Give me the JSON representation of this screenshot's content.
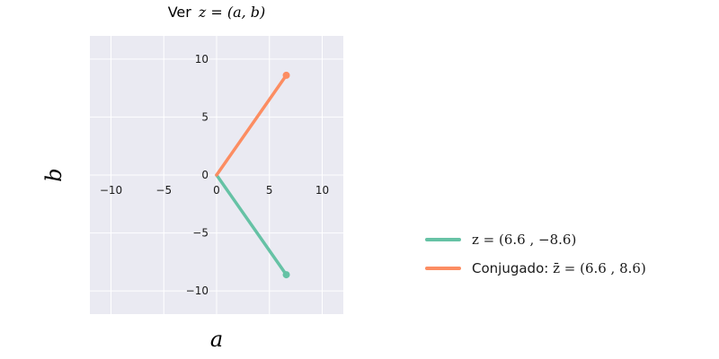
{
  "chart_data": {
    "type": "line",
    "title_prefix": "Ver",
    "title_math": "z = (a, b)",
    "xlabel": "a",
    "ylabel": "b",
    "xlim": [
      -12,
      12
    ],
    "ylim": [
      -12,
      12
    ],
    "xticks": [
      -10,
      -5,
      0,
      5,
      10
    ],
    "yticks": [
      -10,
      -5,
      0,
      5,
      10
    ],
    "x_tick_labels": [
      "−10",
      "−5",
      "0",
      "5",
      "10"
    ],
    "y_tick_labels": [
      "−10",
      "−5",
      "0",
      "5",
      "10"
    ],
    "grid": true,
    "legend_position": "right",
    "series": [
      {
        "id": "z",
        "color": "#66c2a5",
        "legend_prefix": "",
        "legend_math": "z = (6.6 , −8.6)",
        "points": [
          [
            0,
            0
          ],
          [
            6.6,
            -8.6
          ]
        ]
      },
      {
        "id": "conj",
        "color": "#fc8d62",
        "legend_prefix": "Conjugado: ",
        "legend_math": "z̄ = (6.6 , 8.6)",
        "points": [
          [
            0,
            0
          ],
          [
            6.6,
            8.6
          ]
        ]
      }
    ]
  }
}
